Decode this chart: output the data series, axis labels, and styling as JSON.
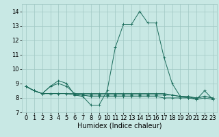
{
  "x": [
    0,
    1,
    2,
    3,
    4,
    5,
    6,
    7,
    8,
    9,
    10,
    11,
    12,
    13,
    14,
    15,
    16,
    17,
    18,
    19,
    20,
    21,
    22,
    23
  ],
  "series": [
    [
      8.8,
      8.5,
      8.3,
      8.8,
      9.2,
      9.0,
      8.2,
      8.1,
      7.5,
      7.5,
      8.5,
      11.5,
      13.1,
      13.1,
      14.0,
      13.2,
      13.2,
      10.8,
      9.0,
      8.1,
      8.1,
      7.9,
      8.5,
      7.9
    ],
    [
      8.8,
      8.5,
      8.3,
      8.8,
      9.0,
      8.8,
      8.3,
      8.2,
      8.2,
      8.2,
      8.2,
      8.2,
      8.2,
      8.2,
      8.2,
      8.2,
      8.2,
      8.2,
      8.2,
      8.1,
      8.1,
      8.0,
      8.1,
      8.0
    ],
    [
      8.8,
      8.5,
      8.3,
      8.3,
      8.3,
      8.3,
      8.3,
      8.3,
      8.3,
      8.3,
      8.3,
      8.3,
      8.3,
      8.3,
      8.3,
      8.3,
      8.3,
      8.3,
      8.2,
      8.1,
      8.0,
      7.9,
      8.0,
      7.9
    ],
    [
      8.8,
      8.5,
      8.3,
      8.3,
      8.3,
      8.3,
      8.2,
      8.2,
      8.1,
      8.1,
      8.1,
      8.1,
      8.1,
      8.1,
      8.1,
      8.1,
      8.1,
      8.0,
      8.0,
      8.0,
      8.0,
      8.0,
      8.1,
      8.0
    ]
  ],
  "line_color": "#1a6b5a",
  "marker": "+",
  "marker_size": 3,
  "xlim": [
    -0.5,
    23.5
  ],
  "ylim": [
    7.0,
    14.5
  ],
  "yticks": [
    7,
    8,
    9,
    10,
    11,
    12,
    13,
    14
  ],
  "xticks": [
    0,
    1,
    2,
    3,
    4,
    5,
    6,
    7,
    8,
    9,
    10,
    11,
    12,
    13,
    14,
    15,
    16,
    17,
    18,
    19,
    20,
    21,
    22,
    23
  ],
  "xlabel": "Humidex (Indice chaleur)",
  "bg_color": "#c8e8e4",
  "grid_color": "#a0c8c4",
  "tick_fontsize": 6,
  "label_fontsize": 7
}
